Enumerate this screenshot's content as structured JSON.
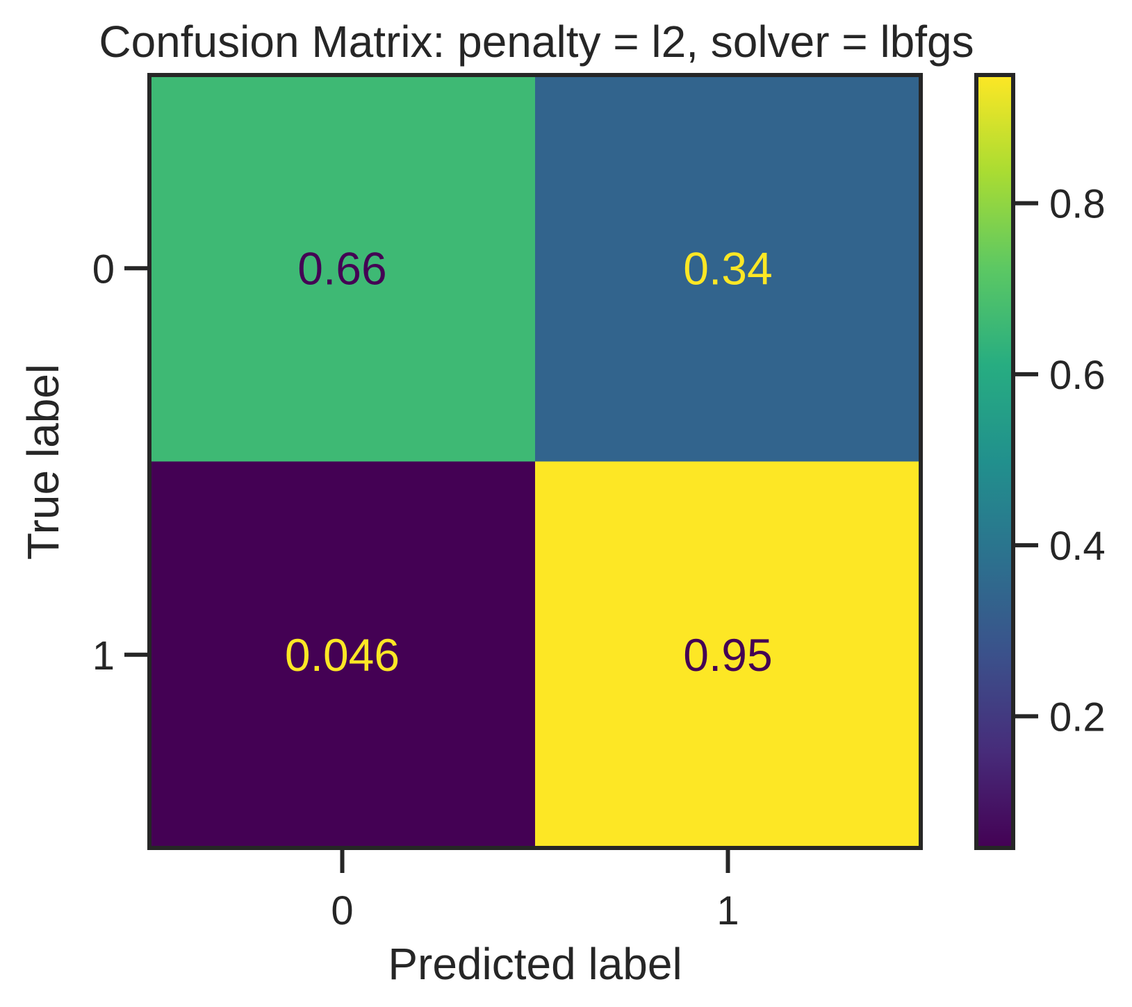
{
  "chart_data": {
    "type": "heatmap",
    "title": "Confusion Matrix: penalty = l2, solver = lbfgs",
    "xlabel": "Predicted label",
    "ylabel": "True label",
    "x_categories": [
      "0",
      "1"
    ],
    "y_categories": [
      "0",
      "1"
    ],
    "values": [
      [
        0.66,
        0.34
      ],
      [
        0.046,
        0.95
      ]
    ],
    "cell_labels": [
      [
        "0.66",
        "0.34"
      ],
      [
        "0.046",
        "0.95"
      ]
    ],
    "colormap": "viridis",
    "color_range": [
      0.046,
      0.95
    ],
    "colorbar": {
      "ticks": [
        0.2,
        0.4,
        0.6,
        0.8
      ],
      "tick_labels": [
        "0.2",
        "0.4",
        "0.6",
        "0.8"
      ]
    },
    "colors": {
      "text_dark": "#440154",
      "text_light": "#fde725",
      "axis": "#262626"
    }
  }
}
